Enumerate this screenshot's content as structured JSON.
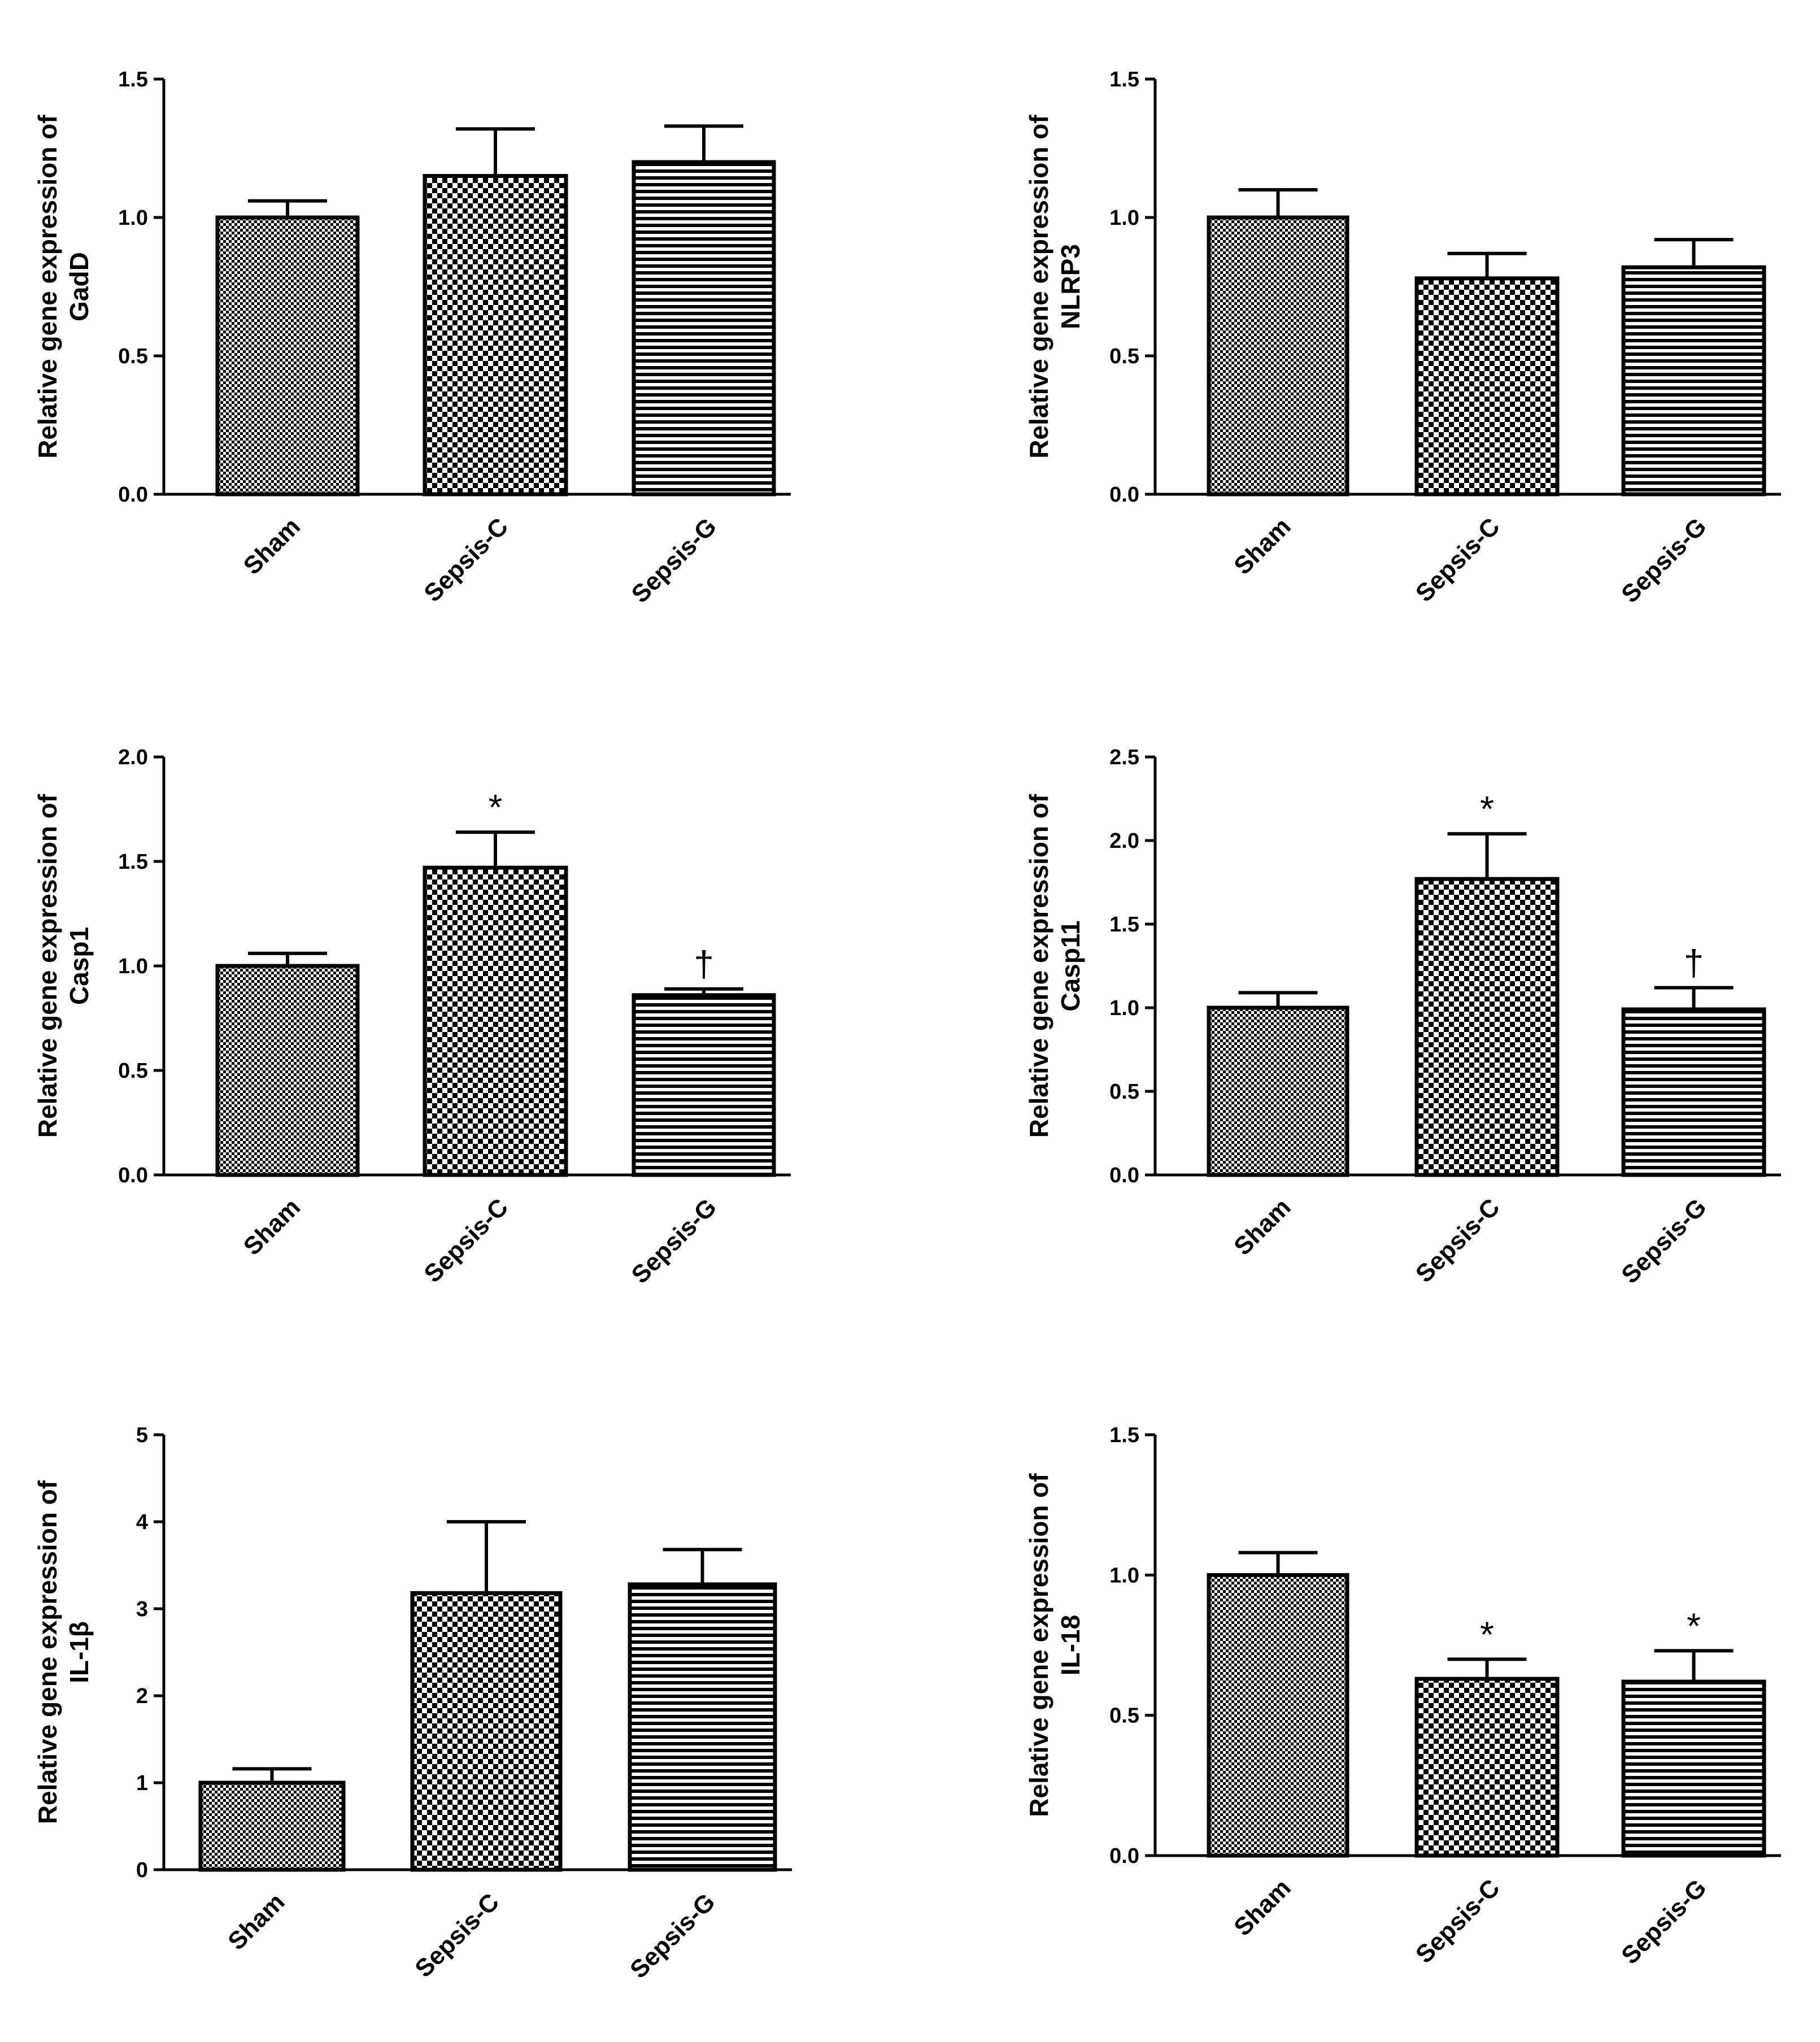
{
  "chart_data": [
    {
      "type": "bar",
      "ylabel": [
        "Relative gene expression of",
        "GadD"
      ],
      "categories": [
        "Sham",
        "Sepsis-C",
        "Sepsis-G"
      ],
      "values": [
        1.0,
        1.15,
        1.2
      ],
      "errors": [
        0.06,
        0.17,
        0.13
      ],
      "annotations": [
        "",
        "",
        ""
      ],
      "ylim": [
        0,
        1.5
      ],
      "yticks": [
        0.0,
        0.5,
        1.0,
        1.5
      ],
      "yticklabels": [
        "0.0",
        "0.5",
        "1.0",
        "1.5"
      ]
    },
    {
      "type": "bar",
      "ylabel": [
        "Relative gene expression of",
        "NLRP3"
      ],
      "categories": [
        "Sham",
        "Sepsis-C",
        "Sepsis-G"
      ],
      "values": [
        1.0,
        0.78,
        0.82
      ],
      "errors": [
        0.1,
        0.09,
        0.1
      ],
      "annotations": [
        "",
        "",
        ""
      ],
      "ylim": [
        0,
        1.5
      ],
      "yticks": [
        0.0,
        0.5,
        1.0,
        1.5
      ],
      "yticklabels": [
        "0.0",
        "0.5",
        "1.0",
        "1.5"
      ]
    },
    {
      "type": "bar",
      "ylabel": [
        "Relative gene expression of",
        "Casp1"
      ],
      "categories": [
        "Sham",
        "Sepsis-C",
        "Sepsis-G"
      ],
      "values": [
        1.0,
        1.47,
        0.86
      ],
      "errors": [
        0.06,
        0.17,
        0.03
      ],
      "annotations": [
        "",
        "*",
        "†"
      ],
      "ylim": [
        0,
        2.0
      ],
      "yticks": [
        0.0,
        0.5,
        1.0,
        1.5,
        2.0
      ],
      "yticklabels": [
        "0.0",
        "0.5",
        "1.0",
        "1.5",
        "2.0"
      ]
    },
    {
      "type": "bar",
      "ylabel": [
        "Relative gene expression of",
        "Casp11"
      ],
      "categories": [
        "Sham",
        "Sepsis-C",
        "Sepsis-G"
      ],
      "values": [
        1.0,
        1.77,
        0.99
      ],
      "errors": [
        0.09,
        0.27,
        0.13
      ],
      "annotations": [
        "",
        "*",
        "†"
      ],
      "ylim": [
        0,
        2.5
      ],
      "yticks": [
        0.0,
        0.5,
        1.0,
        1.5,
        2.0,
        2.5
      ],
      "yticklabels": [
        "0.0",
        "0.5",
        "1.0",
        "1.5",
        "2.0",
        "2.5"
      ]
    },
    {
      "type": "bar",
      "ylabel": [
        "Relative gene expression of",
        "IL-1β"
      ],
      "categories": [
        "Sham",
        "Sepsis-C",
        "Sepsis-G"
      ],
      "values": [
        1.0,
        3.18,
        3.28
      ],
      "errors": [
        0.16,
        0.82,
        0.4
      ],
      "annotations": [
        "",
        "",
        ""
      ],
      "ylim": [
        0,
        5
      ],
      "yticks": [
        0,
        1,
        2,
        3,
        4,
        5
      ],
      "yticklabels": [
        "0",
        "1",
        "2",
        "3",
        "4",
        "5"
      ]
    },
    {
      "type": "bar",
      "ylabel": [
        "Relative gene expression of",
        "IL-18"
      ],
      "categories": [
        "Sham",
        "Sepsis-C",
        "Sepsis-G"
      ],
      "values": [
        1.0,
        0.63,
        0.62
      ],
      "errors": [
        0.08,
        0.07,
        0.11
      ],
      "annotations": [
        "",
        "*",
        "*"
      ],
      "ylim": [
        0,
        1.5
      ],
      "yticks": [
        0.0,
        0.5,
        1.0,
        1.5
      ],
      "yticklabels": [
        "0.0",
        "0.5",
        "1.0",
        "1.5"
      ]
    }
  ]
}
